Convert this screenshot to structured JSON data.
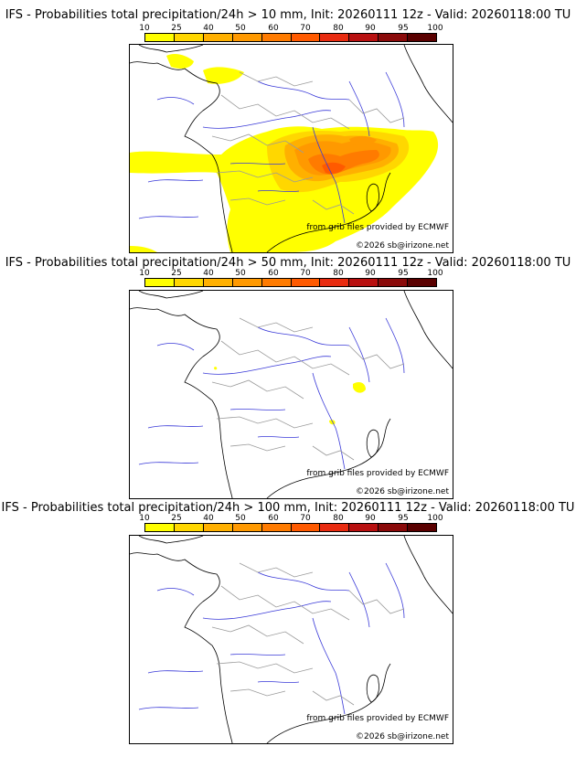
{
  "panels": [
    {
      "title": "IFS - Probabilities total precipitation/24h > 10 mm, Init: 20260111 12z - Valid: 20260118:00 TU",
      "source_credit": "from grib files provided by ECMWF",
      "copyright": "©2026 sb@irizone.net"
    },
    {
      "title": "IFS - Probabilities total precipitation/24h > 50 mm, Init: 20260111 12z - Valid: 20260118:00 TU",
      "source_credit": "from grib files provided by ECMWF",
      "copyright": "©2026 sb@irizone.net"
    },
    {
      "title": "IFS - Probabilities total precipitation/24h > 100 mm, Init: 20260111 12z - Valid: 20260118:00 TU",
      "source_credit": "from grib files provided by ECMWF",
      "copyright": "©2026 sb@irizone.net"
    }
  ],
  "colorbar": {
    "ticks": [
      "10",
      "25",
      "40",
      "50",
      "60",
      "70",
      "80",
      "90",
      "95",
      "100"
    ],
    "colors": [
      "#ffff00",
      "#ffd700",
      "#ffb000",
      "#ff9900",
      "#ff7b00",
      "#ff5a00",
      "#e82b10",
      "#b81010",
      "#8a0a0a",
      "#5a0000"
    ]
  },
  "map_colors": {
    "coast": "#000000",
    "rivers": "#3a3ad8",
    "borders": "#9a9a9a"
  }
}
